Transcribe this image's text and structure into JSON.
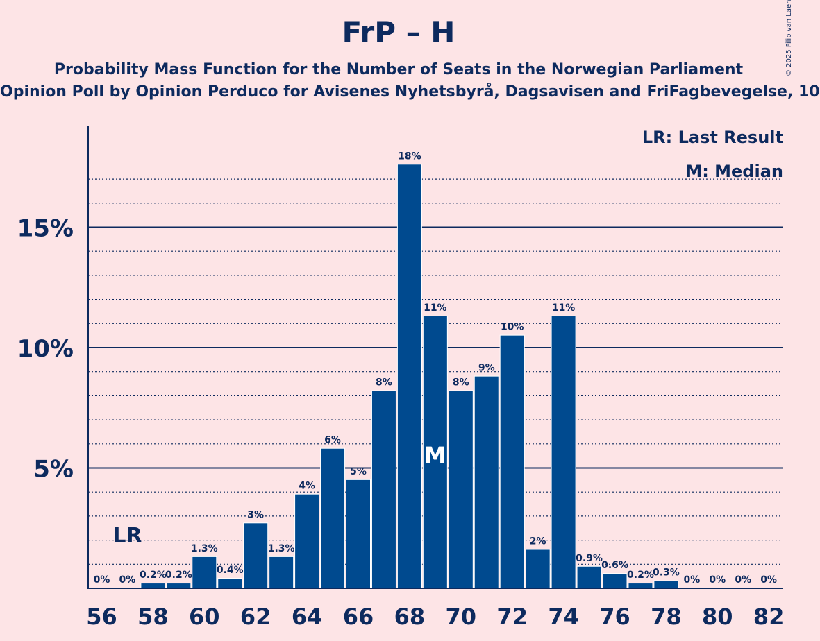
{
  "title": "FrP – H",
  "subtitle": "Probability Mass Function for the Number of Seats in the Norwegian Parliament",
  "subtitle2": "Opinion Poll by Opinion Perduco for Avisenes Nyhetsbyrå, Dagsavisen and FriFagbevegelse, 10",
  "copyright": "© 2025 Filip van Laenen",
  "legend": {
    "last_result": "LR: Last Result",
    "median": "M: Median"
  },
  "colors": {
    "background": "#FDE4E6",
    "bar": "#004A8F",
    "text": "#0D2A5E"
  },
  "chart_data": {
    "type": "bar",
    "categories": [
      56,
      57,
      58,
      59,
      60,
      61,
      62,
      63,
      64,
      65,
      66,
      67,
      68,
      69,
      70,
      71,
      72,
      73,
      74,
      75,
      76,
      77,
      78,
      79,
      80,
      81,
      82
    ],
    "values": [
      0,
      0,
      0.2,
      0.2,
      1.3,
      0.4,
      2.7,
      1.3,
      3.9,
      5.8,
      4.5,
      8.2,
      17.6,
      11.3,
      8.2,
      8.8,
      10.5,
      1.6,
      11.3,
      0.9,
      0.6,
      0.2,
      0.3,
      0,
      0,
      0,
      0
    ],
    "data_labels": [
      "0%",
      "0%",
      "0.2%",
      "0.2%",
      "1.3%",
      "0.4%",
      "3%",
      "1.3%",
      "4%",
      "6%",
      "5%",
      "8%",
      "18%",
      "11%",
      "8%",
      "9%",
      "10%",
      "2%",
      "11%",
      "0.9%",
      "0.6%",
      "0.2%",
      "0.3%",
      "0%",
      "0%",
      "0%",
      "0%"
    ],
    "x_tick_labels": [
      "56",
      "58",
      "60",
      "62",
      "64",
      "66",
      "68",
      "70",
      "72",
      "74",
      "76",
      "78",
      "80",
      "82"
    ],
    "y_tick_labels": [
      "5%",
      "10%",
      "15%"
    ],
    "y_ticks": [
      5,
      10,
      15
    ],
    "ylim": [
      0,
      19
    ],
    "last_result_seat": 57,
    "last_result_label": "LR",
    "median_seat": 69,
    "median_label": "M"
  }
}
